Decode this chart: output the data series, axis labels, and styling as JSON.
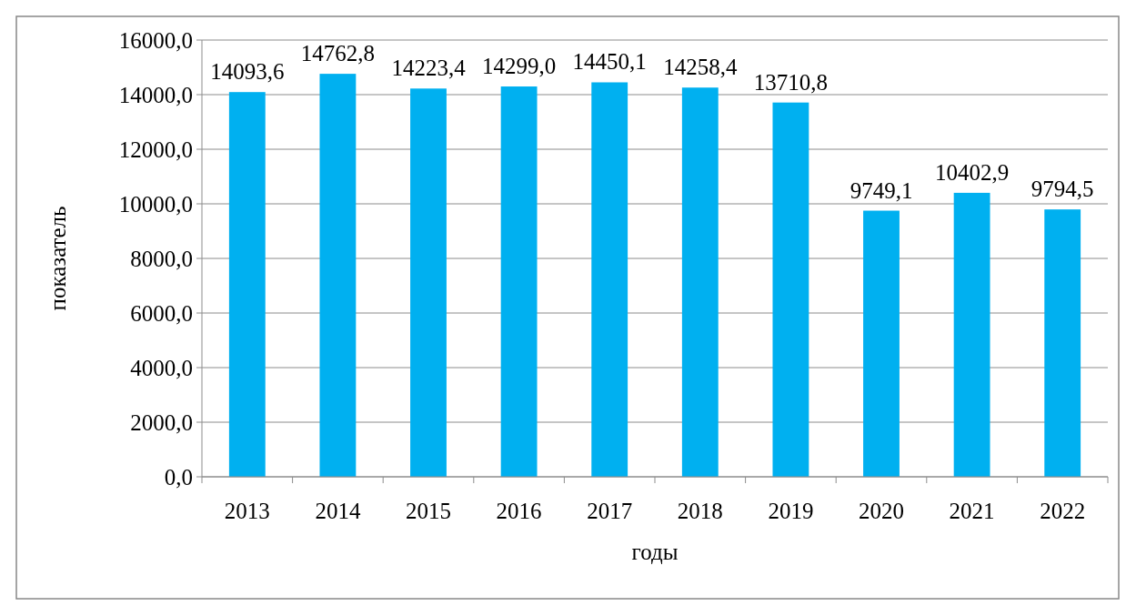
{
  "chart_data": {
    "type": "bar",
    "xlabel": "годы",
    "ylabel": "показатель",
    "categories": [
      "2013",
      "2014",
      "2015",
      "2016",
      "2017",
      "2018",
      "2019",
      "2020",
      "2021",
      "2022"
    ],
    "values": [
      14093.6,
      14762.8,
      14223.4,
      14299.0,
      14450.1,
      14258.4,
      13710.8,
      9749.1,
      10402.9,
      9794.5
    ],
    "value_labels": [
      "14093,6",
      "14762,8",
      "14223,4",
      "14299,0",
      "14450,1",
      "14258,4",
      "13710,8",
      "9749,1",
      "10402,9",
      "9794,5"
    ],
    "color": "#00b0f0",
    "ylim": [
      0,
      16000
    ],
    "yticks": [
      {
        "value": 0,
        "label": "0,0"
      },
      {
        "value": 2000,
        "label": "2000,0"
      },
      {
        "value": 4000,
        "label": "4000,0"
      },
      {
        "value": 6000,
        "label": "6000,0"
      },
      {
        "value": 8000,
        "label": "8000,0"
      },
      {
        "value": 10000,
        "label": "10000,0"
      },
      {
        "value": 12000,
        "label": "12000,0"
      },
      {
        "value": 14000,
        "label": "14000,0"
      },
      {
        "value": 16000,
        "label": "16000,0"
      }
    ],
    "grid": "y"
  }
}
